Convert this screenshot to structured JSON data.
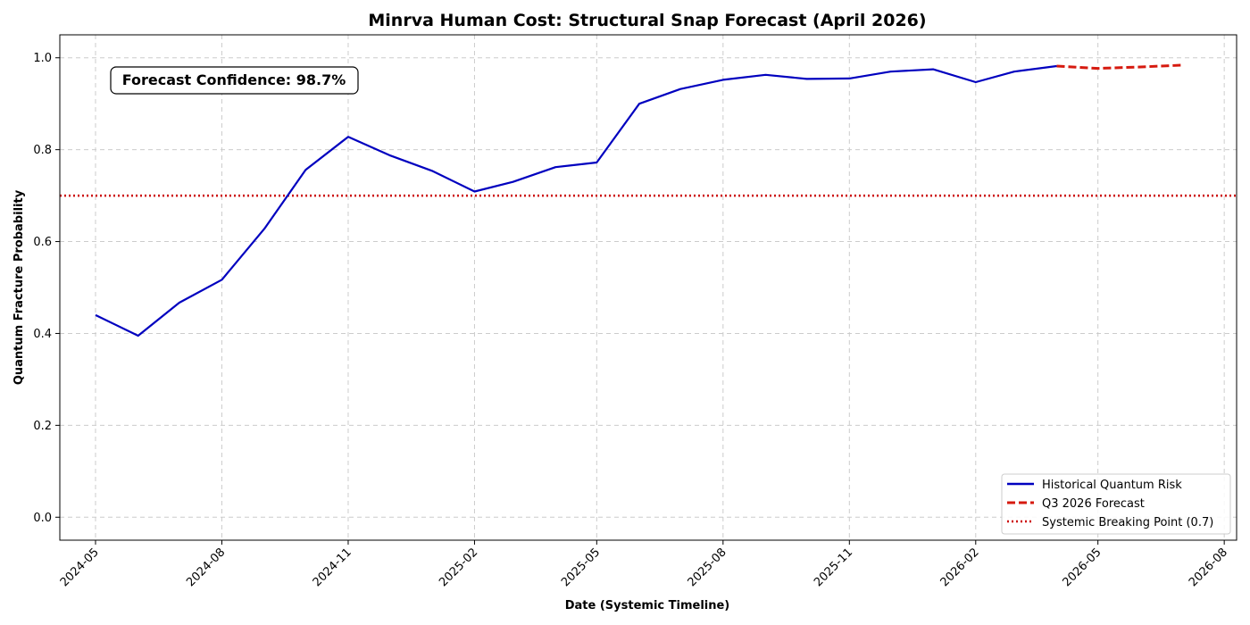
{
  "chart_data": {
    "type": "line",
    "title": "Minrva Human Cost: Structural Snap Forecast (April 2026)",
    "xlabel": "Date (Systemic Timeline)",
    "ylabel": "Quantum Fracture Probability",
    "xlim": [
      "2024-04-05",
      "2026-08-10"
    ],
    "ylim": [
      -0.05,
      1.05
    ],
    "x_ticks": [
      "2024-05",
      "2024-08",
      "2024-11",
      "2025-02",
      "2025-05",
      "2025-08",
      "2025-11",
      "2026-02",
      "2026-05",
      "2026-08"
    ],
    "y_ticks": [
      0.0,
      0.2,
      0.4,
      0.6,
      0.8,
      1.0
    ],
    "grid": true,
    "legend_position": "lower-right",
    "series": [
      {
        "name": "Historical Quantum Risk",
        "style": "solid",
        "color": "#0000bf",
        "points": [
          {
            "x": "2024-05-01",
            "y": 0.44
          },
          {
            "x": "2024-06-01",
            "y": 0.395
          },
          {
            "x": "2024-07-01",
            "y": 0.467
          },
          {
            "x": "2024-08-01",
            "y": 0.517
          },
          {
            "x": "2024-09-01",
            "y": 0.628
          },
          {
            "x": "2024-10-01",
            "y": 0.756
          },
          {
            "x": "2024-11-01",
            "y": 0.828
          },
          {
            "x": "2024-12-01",
            "y": 0.788
          },
          {
            "x": "2025-01-01",
            "y": 0.754
          },
          {
            "x": "2025-02-01",
            "y": 0.709
          },
          {
            "x": "2025-03-01",
            "y": 0.73
          },
          {
            "x": "2025-04-01",
            "y": 0.762
          },
          {
            "x": "2025-05-01",
            "y": 0.772
          },
          {
            "x": "2025-06-01",
            "y": 0.9
          },
          {
            "x": "2025-07-01",
            "y": 0.932
          },
          {
            "x": "2025-08-01",
            "y": 0.952
          },
          {
            "x": "2025-09-01",
            "y": 0.963
          },
          {
            "x": "2025-10-01",
            "y": 0.954
          },
          {
            "x": "2025-11-01",
            "y": 0.955
          },
          {
            "x": "2025-12-01",
            "y": 0.97
          },
          {
            "x": "2026-01-01",
            "y": 0.975
          },
          {
            "x": "2026-02-01",
            "y": 0.947
          },
          {
            "x": "2026-03-01",
            "y": 0.97
          },
          {
            "x": "2026-04-01",
            "y": 0.982
          }
        ]
      },
      {
        "name": "Q3 2026 Forecast",
        "style": "dashed",
        "color": "#d61a0f",
        "points": [
          {
            "x": "2026-04-01",
            "y": 0.982
          },
          {
            "x": "2026-05-01",
            "y": 0.977
          },
          {
            "x": "2026-06-01",
            "y": 0.98
          },
          {
            "x": "2026-07-01",
            "y": 0.984
          }
        ]
      }
    ],
    "reference_lines": [
      {
        "name": "Systemic Breaking Point (0.7)",
        "y": 0.7,
        "style": "dotted",
        "color": "#cc0000"
      }
    ],
    "annotations": [
      {
        "text": "Forecast Confidence: 98.7%",
        "position": "top-left"
      }
    ]
  }
}
